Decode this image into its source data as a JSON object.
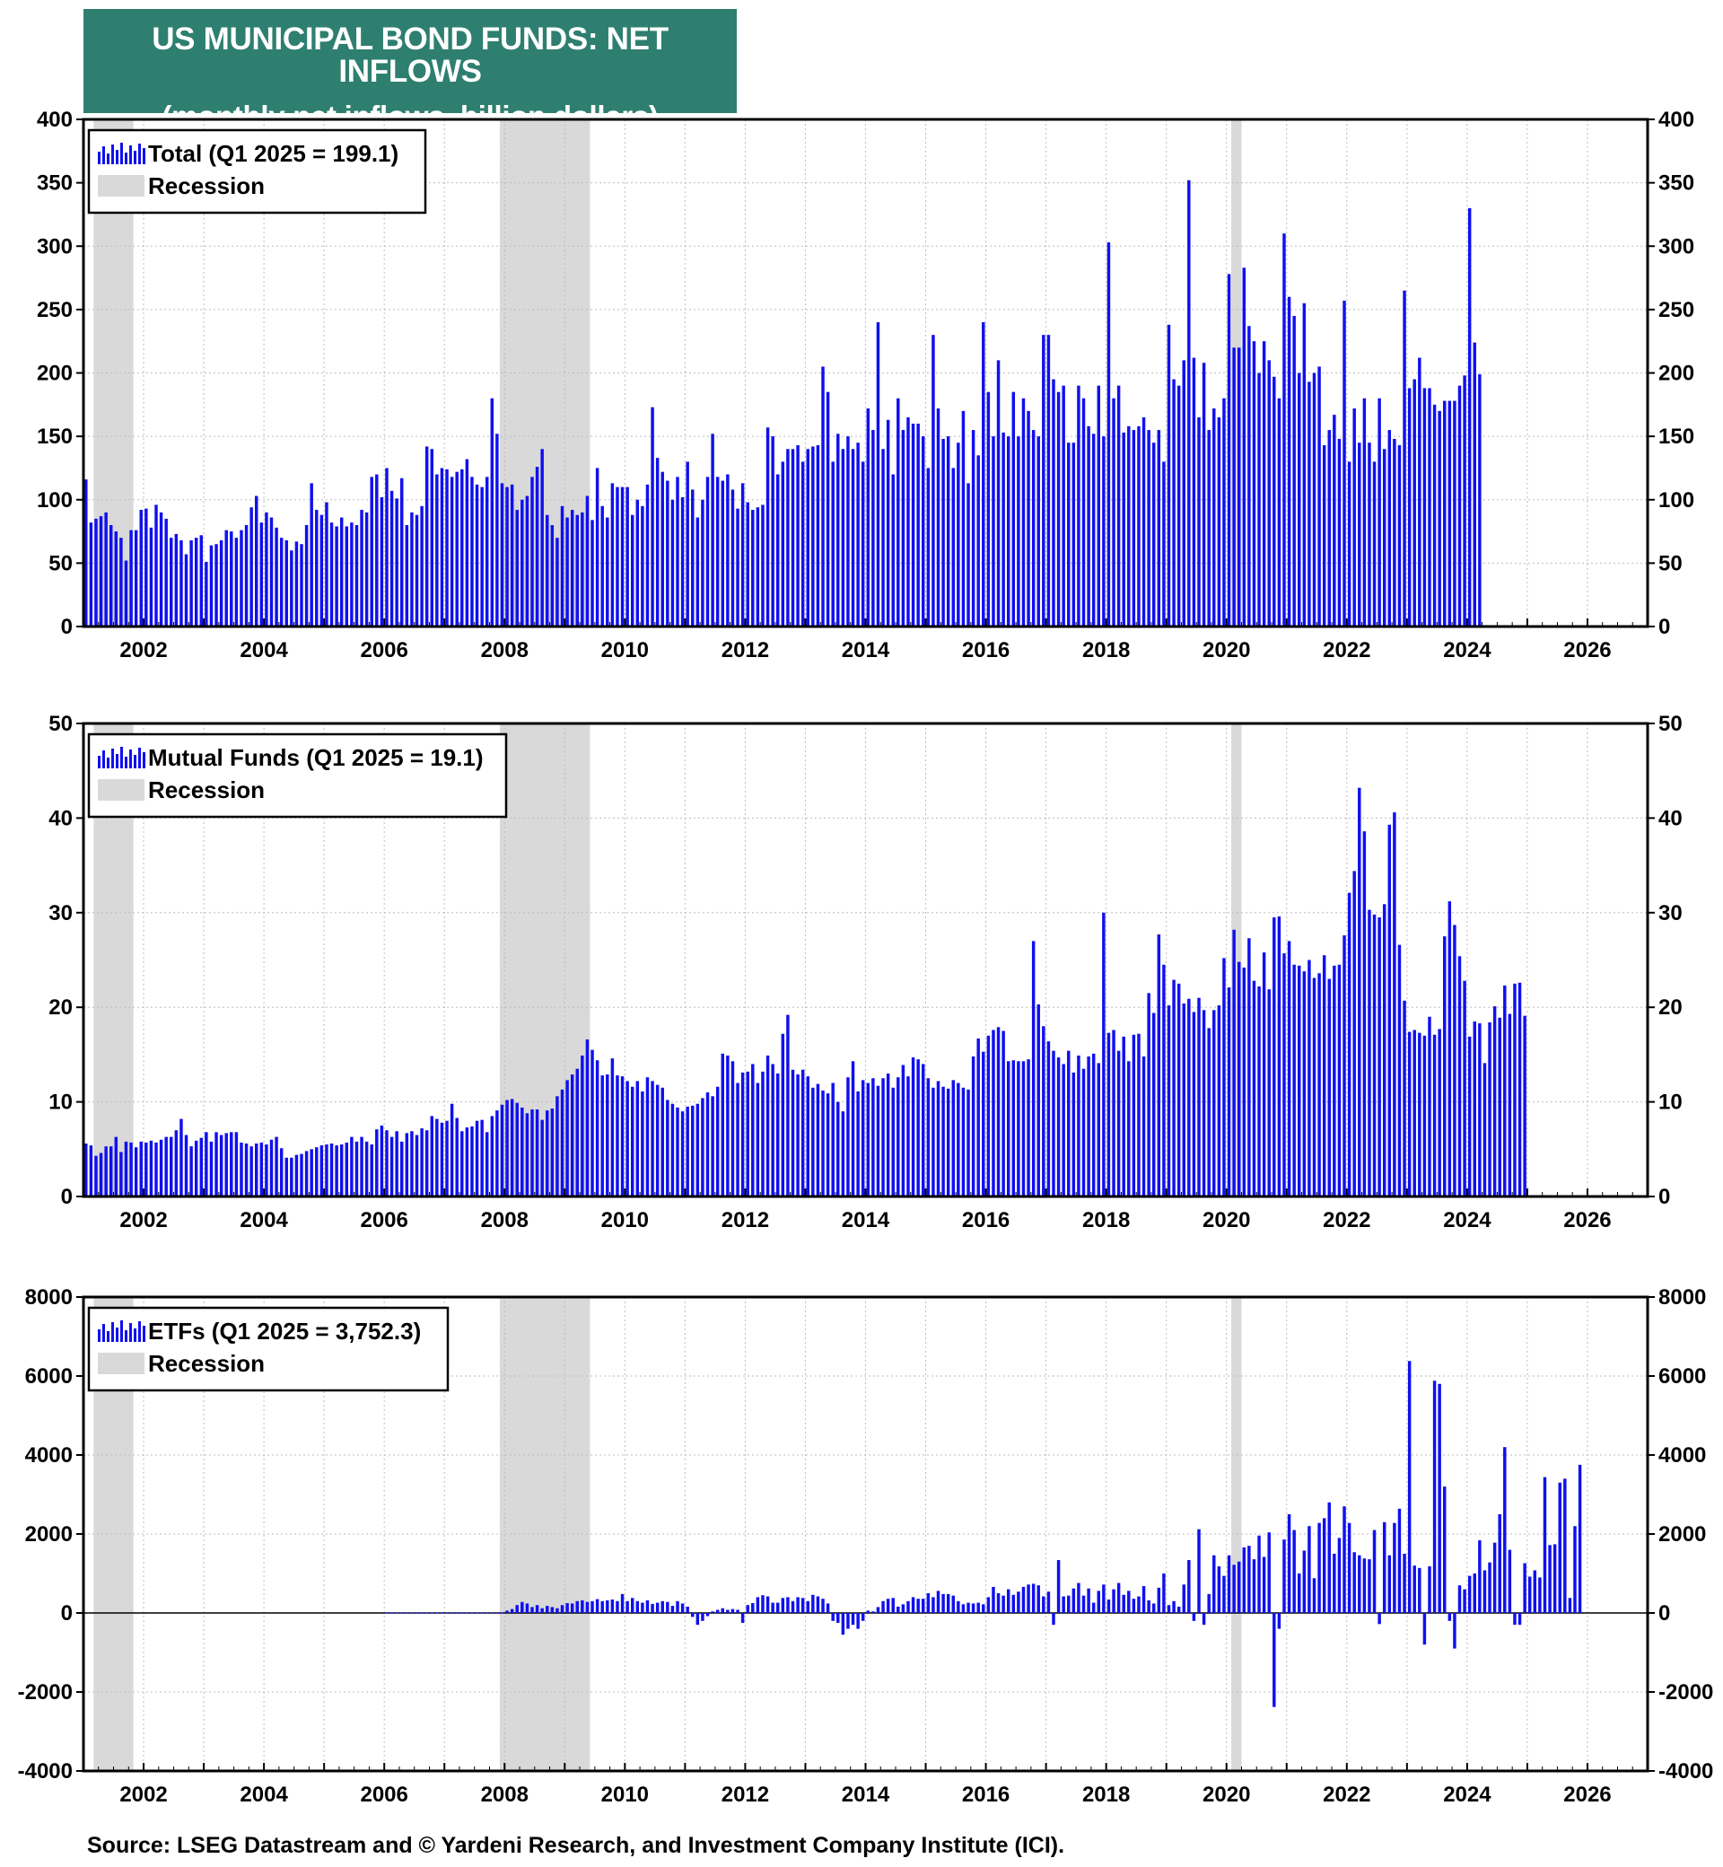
{
  "title": {
    "line1": "US MUNICIPAL BOND FUNDS: NET INFLOWS",
    "line2": "(monthly net inflows, billion dollars)"
  },
  "source": "Source: LSEG Datastream and © Yardeni Research, and Investment Company Institute (ICI).",
  "colors": {
    "bar": "#1010ee",
    "recession": "#d9d9d9",
    "title_bg": "#2e7f6f"
  },
  "recession_label": "Recession",
  "x_ticks": [
    "2002",
    "2004",
    "2006",
    "2008",
    "2010",
    "2012",
    "2014",
    "2016",
    "2018",
    "2020",
    "2022",
    "2024",
    "2026"
  ],
  "chart_data": [
    {
      "type": "bar",
      "legend": "Total (Q1 2025 = 199.1)",
      "y_ticks": [
        "400",
        "350",
        "300",
        "250",
        "200",
        "150",
        "100",
        "50",
        "0"
      ],
      "ylim": [
        0,
        400
      ],
      "xlim": [
        2001.0,
        2027.0
      ],
      "recessions": [
        [
          2001.17,
          2001.83
        ],
        [
          2007.92,
          2009.42
        ],
        [
          2020.08,
          2020.25
        ]
      ],
      "series": [
        {
          "name": "Total",
          "start": 2001.0,
          "step_months": 1,
          "values": [
            116,
            82,
            85,
            87,
            90,
            80,
            75,
            70,
            52,
            76,
            76,
            92,
            93,
            78,
            96,
            90,
            85,
            70,
            73,
            68,
            57,
            68,
            70,
            72,
            51,
            64,
            65,
            68,
            76,
            75,
            70,
            76,
            80,
            94,
            103,
            82,
            90,
            86,
            78,
            70,
            68,
            60,
            67,
            65,
            80,
            113,
            92,
            88,
            98,
            82,
            79,
            86,
            79,
            82,
            80,
            92,
            90,
            118,
            120,
            102,
            125,
            107,
            101,
            117,
            80,
            90,
            88,
            95,
            142,
            140,
            120,
            125,
            124,
            118,
            122,
            124,
            132,
            118,
            112,
            110,
            118,
            180,
            152,
            113,
            110,
            112,
            92,
            100,
            103,
            118,
            126,
            140,
            88,
            80,
            70,
            95,
            86,
            92,
            88,
            90,
            103,
            84,
            125,
            95,
            86,
            113,
            110,
            110,
            110,
            88,
            100,
            95,
            112,
            173,
            133,
            122,
            115,
            100,
            118,
            102,
            130,
            108,
            86,
            100,
            118,
            152,
            118,
            115,
            120,
            108,
            93,
            113,
            98,
            92,
            94,
            96,
            157,
            150,
            120,
            130,
            140,
            140,
            143,
            130,
            140,
            142,
            143,
            205,
            185,
            130,
            152,
            140,
            150,
            140,
            145,
            130,
            172,
            155,
            240,
            140,
            163,
            120,
            180,
            155,
            165,
            160,
            160,
            150,
            125,
            230,
            172,
            148,
            150,
            125,
            145,
            170,
            113,
            155,
            135,
            240,
            185,
            150,
            210,
            153,
            150,
            185,
            150,
            180,
            170,
            155,
            150,
            230,
            230,
            195,
            185,
            190,
            145,
            145,
            190,
            180,
            158,
            152,
            190,
            150,
            303,
            180,
            190,
            153,
            158,
            155,
            158,
            165,
            155,
            145,
            155,
            130,
            238,
            195,
            190,
            210,
            352,
            212,
            165,
            208,
            155,
            172,
            165,
            180,
            278,
            220,
            220,
            283,
            237,
            225,
            200,
            225,
            210,
            197,
            180,
            310,
            260,
            245,
            200,
            255,
            193,
            200,
            205,
            143,
            155,
            167,
            148,
            257,
            130,
            172,
            145,
            180,
            145,
            130,
            180,
            140,
            155,
            148,
            143,
            265,
            188,
            195,
            212,
            188,
            188,
            175,
            170,
            178,
            178,
            178,
            190,
            198,
            330,
            224,
            199
          ]
        }
      ]
    },
    {
      "type": "bar",
      "legend": "Mutual Funds (Q1 2025 = 19.1)",
      "y_ticks": [
        "50",
        "40",
        "30",
        "20",
        "10",
        "0"
      ],
      "ylim": [
        0,
        50
      ],
      "xlim": [
        2001.0,
        2027.0
      ],
      "recessions": [
        [
          2001.17,
          2001.83
        ],
        [
          2007.92,
          2009.42
        ],
        [
          2020.08,
          2020.25
        ]
      ],
      "series": [
        {
          "name": "Mutual Funds",
          "start": 2001.0,
          "step_months": 1,
          "values": [
            5.6,
            5.4,
            4.3,
            4.6,
            5.3,
            5.3,
            6.3,
            4.7,
            5.8,
            5.7,
            5.2,
            5.8,
            5.7,
            5.9,
            5.7,
            6.0,
            6.3,
            6.3,
            7.0,
            8.2,
            6.5,
            5.3,
            5.9,
            6.2,
            6.8,
            5.8,
            6.8,
            6.5,
            6.7,
            6.8,
            6.8,
            5.7,
            5.6,
            5.3,
            5.6,
            5.7,
            5.5,
            6.0,
            6.3,
            5.1,
            4.1,
            4.1,
            4.4,
            4.5,
            4.8,
            5.0,
            5.2,
            5.4,
            5.5,
            5.6,
            5.4,
            5.5,
            5.7,
            6.3,
            5.8,
            6.3,
            5.8,
            5.5,
            7.1,
            7.5,
            7.0,
            6.3,
            6.9,
            5.8,
            6.7,
            6.9,
            6.5,
            7.2,
            7.0,
            8.5,
            8.2,
            7.8,
            8.0,
            9.8,
            8.3,
            6.9,
            7.3,
            7.4,
            8.0,
            8.1,
            6.8,
            8.5,
            9.1,
            9.7,
            10.2,
            10.3,
            9.9,
            9.4,
            8.8,
            9.2,
            9.2,
            8.1,
            9.1,
            9.3,
            10.6,
            11.3,
            12.3,
            12.9,
            13.5,
            14.9,
            16.6,
            15.5,
            14.4,
            12.8,
            12.9,
            14.6,
            12.8,
            12.7,
            12.2,
            11.6,
            12.2,
            11.1,
            12.6,
            12.2,
            11.8,
            11.5,
            10.2,
            9.8,
            9.4,
            9.0,
            9.5,
            9.6,
            9.8,
            10.4,
            11.0,
            10.6,
            11.6,
            15.1,
            14.9,
            14.3,
            12.0,
            13.1,
            13.2,
            14.0,
            12.0,
            13.2,
            14.9,
            14.0,
            13.0,
            17.2,
            19.2,
            13.4,
            12.9,
            13.4,
            12.7,
            11.5,
            11.9,
            11.2,
            10.9,
            12.0,
            10.0,
            9.0,
            12.6,
            14.3,
            11.1,
            12.3,
            12.0,
            12.5,
            11.7,
            12.5,
            13.0,
            11.5,
            12.6,
            13.9,
            12.7,
            14.7,
            14.5,
            14.0,
            12.5,
            11.5,
            12.2,
            11.6,
            11.4,
            12.3,
            12.0,
            11.5,
            11.3,
            14.8,
            16.7,
            15.3,
            17.0,
            17.6,
            17.9,
            17.5,
            14.3,
            14.4,
            14.3,
            14.3,
            14.5,
            27.0,
            20.3,
            18.0,
            16.4,
            15.4,
            14.7,
            14.0,
            15.4,
            13.1,
            14.9,
            13.5,
            14.8,
            15.1,
            14.1,
            30.0,
            17.3,
            17.6,
            15.4,
            16.9,
            14.3,
            17.1,
            17.2,
            14.8,
            21.5,
            19.4,
            27.7,
            24.5,
            20.2,
            22.9,
            22.5,
            20.4,
            20.9,
            19.5,
            21.0,
            19.7,
            17.8,
            19.7,
            20.2,
            25.2,
            22.1,
            28.2,
            24.8,
            24.2,
            27.3,
            22.8,
            22.2,
            25.8,
            21.9,
            29.5,
            29.6,
            25.7,
            27.0,
            24.5,
            24.4,
            23.8,
            25.0,
            23.1,
            23.6,
            25.5,
            23.0,
            24.4,
            24.5,
            27.6,
            32.1,
            34.4,
            43.2,
            38.6,
            30.3,
            29.8,
            29.5,
            30.9,
            39.3,
            40.6,
            26.6,
            20.7,
            17.4,
            17.6,
            17.3,
            17.0,
            19.0,
            17.1,
            17.7,
            27.5,
            31.2,
            28.7,
            25.4,
            22.8,
            16.9,
            18.5,
            18.3,
            14.1,
            18.4,
            20.1,
            18.9,
            22.3,
            19.3,
            22.5,
            22.6,
            19.1
          ]
        }
      ]
    },
    {
      "type": "bar",
      "legend": "ETFs (Q1 2025 = 3,752.3)",
      "y_ticks": [
        "8000",
        "6000",
        "4000",
        "2000",
        "0",
        "-2000",
        "-4000"
      ],
      "ylim": [
        -4000,
        8000
      ],
      "xlim": [
        2001.0,
        2027.0
      ],
      "recessions": [
        [
          2001.17,
          2001.83
        ],
        [
          2007.92,
          2009.42
        ],
        [
          2020.08,
          2020.25
        ]
      ],
      "series": [
        {
          "name": "ETFs",
          "start": 2006.0,
          "step_months": 1,
          "values": [
            10,
            10,
            10,
            10,
            10,
            10,
            10,
            10,
            10,
            10,
            10,
            10,
            10,
            10,
            10,
            10,
            10,
            10,
            10,
            10,
            10,
            10,
            10,
            10,
            60,
            100,
            200,
            280,
            240,
            150,
            200,
            120,
            180,
            150,
            120,
            200,
            250,
            240,
            300,
            320,
            280,
            300,
            350,
            300,
            320,
            340,
            300,
            480,
            300,
            380,
            300,
            260,
            320,
            230,
            260,
            300,
            280,
            180,
            300,
            240,
            160,
            -100,
            -300,
            -200,
            -80,
            40,
            80,
            120,
            80,
            100,
            80,
            -250,
            200,
            250,
            400,
            450,
            420,
            260,
            260,
            380,
            400,
            300,
            400,
            380,
            300,
            460,
            420,
            360,
            240,
            -200,
            -250,
            -550,
            -400,
            -300,
            -400,
            -200,
            60,
            40,
            150,
            300,
            360,
            380,
            160,
            220,
            300,
            400,
            360,
            360,
            500,
            400,
            560,
            480,
            480,
            440,
            300,
            220,
            260,
            240,
            260,
            220,
            400,
            660,
            500,
            440,
            600,
            460,
            540,
            660,
            720,
            740,
            700,
            420,
            540,
            -300,
            1340,
            420,
            440,
            620,
            760,
            440,
            620,
            260,
            560,
            720,
            340,
            600,
            760,
            460,
            560,
            360,
            420,
            680,
            320,
            240,
            640,
            1000,
            200,
            300,
            160,
            720,
            1340,
            -200,
            2120,
            -300,
            480,
            1460,
            1180,
            940,
            1460,
            1220,
            1300,
            1660,
            1700,
            1360,
            1960,
            1420,
            2040,
            -2380,
            -400,
            1860,
            2500,
            2100,
            1000,
            1580,
            2200,
            880,
            2280,
            2400,
            2800,
            1500,
            1900,
            2700,
            2280,
            1540,
            1460,
            1380,
            1360,
            2100,
            -280,
            2300,
            1460,
            2280,
            2640,
            1500,
            6380,
            1200,
            1140,
            -800,
            1180,
            5880,
            5800,
            3200,
            -200,
            -900,
            700,
            600,
            940,
            1000,
            1840,
            1080,
            1280,
            1780,
            2500,
            4200,
            1600,
            -300,
            -300,
            1260,
            920,
            1080,
            900,
            3440,
            1720,
            1740,
            3300,
            3400,
            380,
            2200,
            3752
          ]
        }
      ]
    }
  ]
}
